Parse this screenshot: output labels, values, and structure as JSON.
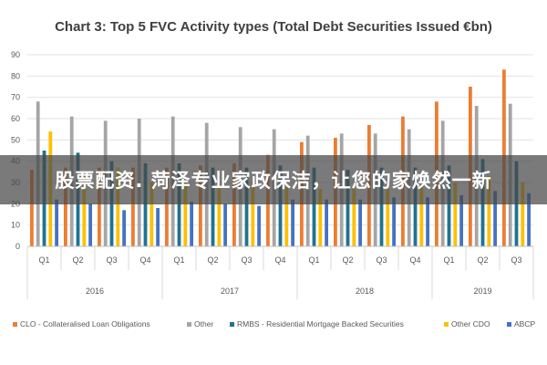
{
  "chart_data": {
    "type": "bar",
    "title": "Chart 3: Top 5 FVC Activity types (Total Debt Securities Issued €bn)",
    "xlabel": "",
    "ylabel": "",
    "ylim": [
      0,
      90
    ],
    "yticks": [
      0,
      10,
      20,
      30,
      40,
      50,
      60,
      70,
      80,
      90
    ],
    "grid": true,
    "legend_position": "bottom",
    "categories": [
      "Q1",
      "Q2",
      "Q3",
      "Q4",
      "Q1",
      "Q2",
      "Q3",
      "Q4",
      "Q1",
      "Q2",
      "Q3",
      "Q4",
      "Q1",
      "Q2",
      "Q3"
    ],
    "groups": [
      {
        "label": "2016",
        "count": 4
      },
      {
        "label": "2017",
        "count": 4
      },
      {
        "label": "2018",
        "count": 4
      },
      {
        "label": "2019",
        "count": 3
      }
    ],
    "series": [
      {
        "name": "CLO - Collateralised Loan Obligations",
        "color": "#ed7d31",
        "values": [
          36,
          37,
          37,
          37,
          37,
          38,
          39,
          43,
          49,
          51,
          57,
          61,
          68,
          75,
          83
        ]
      },
      {
        "name": "Other",
        "color": "#a5a5a5",
        "values": [
          68,
          61,
          59,
          60,
          61,
          58,
          56,
          55,
          52,
          53,
          53,
          55,
          59,
          66,
          67
        ]
      },
      {
        "name": "RMBS - Residential Mortgage Backed Securities",
        "color": "#1f7391",
        "values": [
          45,
          44,
          40,
          39,
          39,
          37,
          37,
          38,
          37,
          36,
          37,
          37,
          38,
          41,
          40
        ]
      },
      {
        "name": "Other CDO",
        "color": "#ffc000",
        "values": [
          54,
          35,
          37,
          30,
          30,
          29,
          29,
          28,
          27,
          27,
          27,
          28,
          30,
          33,
          30
        ]
      },
      {
        "name": "ABCP",
        "color": "#4472c4",
        "values": [
          22,
          20,
          17,
          18,
          21,
          20,
          19,
          22,
          22,
          22,
          23,
          23,
          24,
          26,
          25
        ]
      }
    ]
  },
  "overlay": {
    "text": "股票配资. 菏泽专业家政保洁，让您的家焕然一新"
  }
}
